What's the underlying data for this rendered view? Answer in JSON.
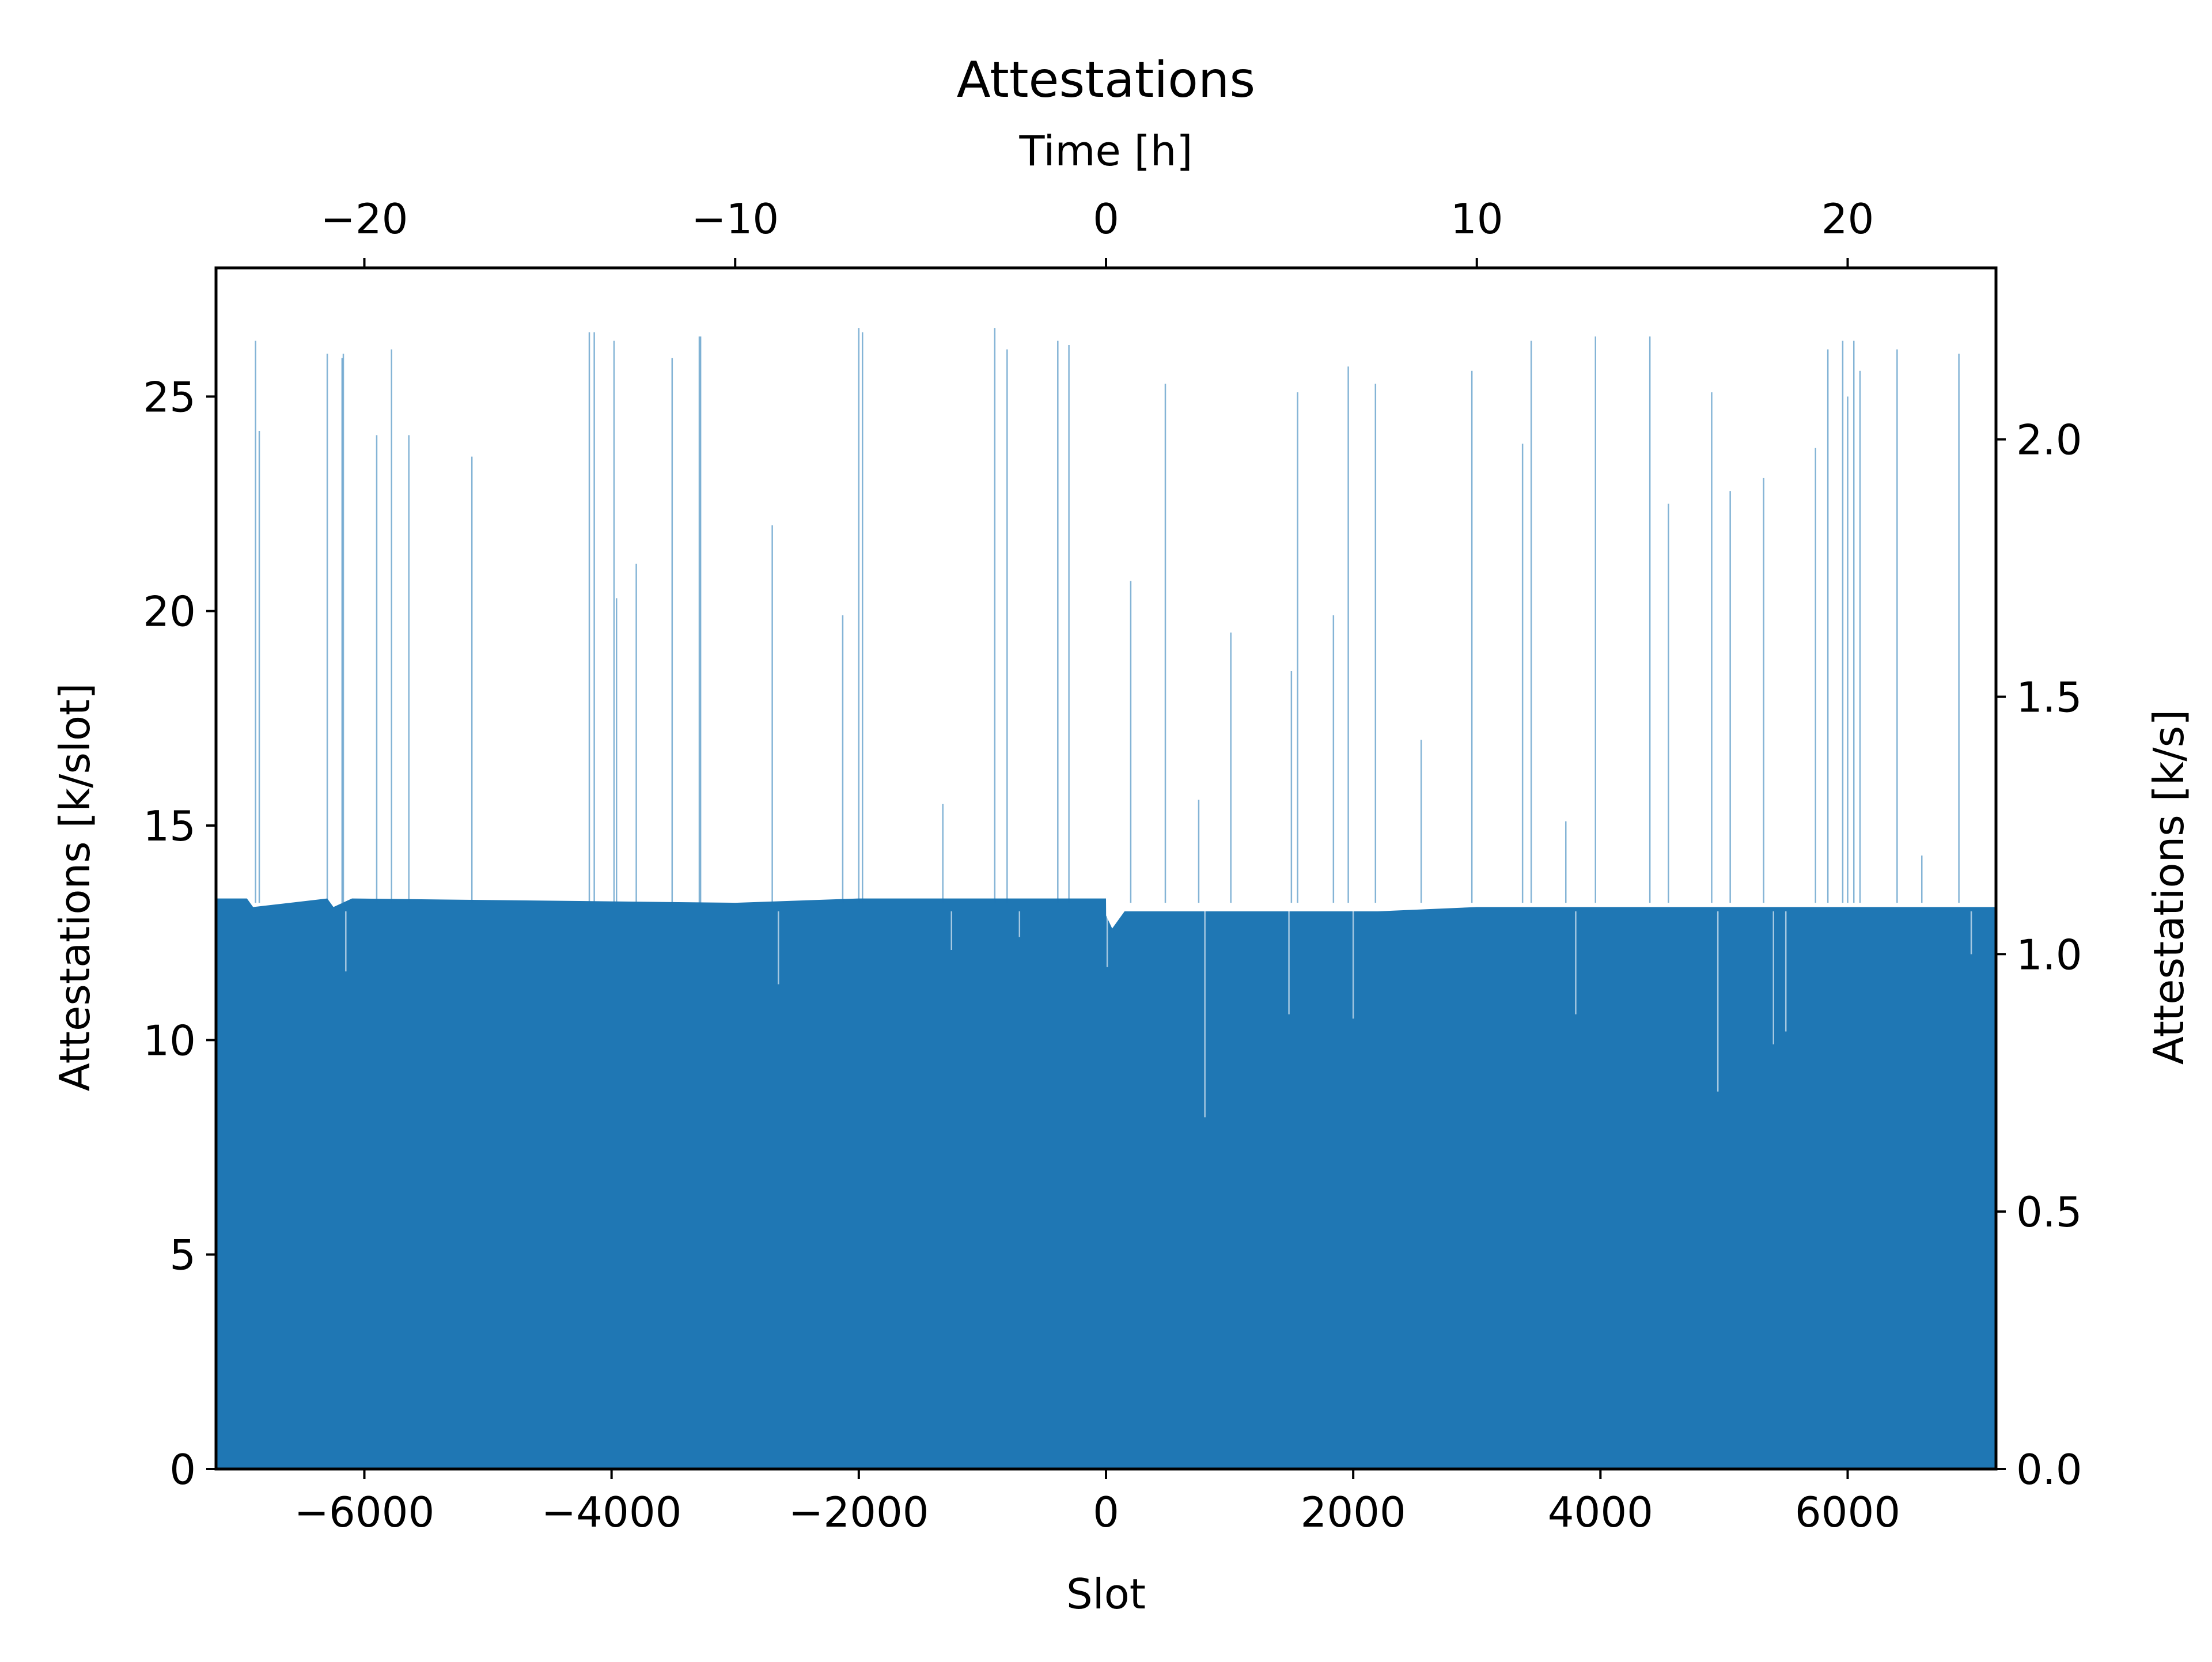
{
  "chart_data": {
    "type": "bar",
    "title": "Attestations",
    "xlabel": "Slot",
    "ylabel": "Attestations [k/slot]",
    "secondary_xlabel": "Time [h]",
    "secondary_ylabel": "Attestations [k/s]",
    "xlim": [
      -7200,
      7200
    ],
    "ylim": [
      0,
      28
    ],
    "secondary_xlim": [
      -24,
      24
    ],
    "secondary_ylim": [
      0,
      2.333
    ],
    "xticks": [
      -6000,
      -4000,
      -2000,
      0,
      2000,
      4000,
      6000
    ],
    "xtick_labels": [
      "−6000",
      "−4000",
      "−2000",
      "0",
      "2000",
      "4000",
      "6000"
    ],
    "yticks": [
      0,
      5,
      10,
      15,
      20,
      25
    ],
    "ytick_labels": [
      "0",
      "5",
      "10",
      "15",
      "20",
      "25"
    ],
    "top_xticks": [
      -20,
      -10,
      0,
      10,
      20
    ],
    "top_xtick_labels": [
      "−20",
      "−10",
      "0",
      "10",
      "20"
    ],
    "right_yticks": [
      0.0,
      0.5,
      1.0,
      1.5,
      2.0
    ],
    "right_ytick_labels": [
      "0.0",
      "0.5",
      "1.0",
      "1.5",
      "2.0"
    ],
    "grid": false,
    "bar_color": "#1f77b4",
    "series": [
      {
        "name": "",
        "baseline": [
          [
            -7200,
            13.3
          ],
          [
            -6950,
            13.3
          ],
          [
            -6900,
            13.1
          ],
          [
            -6300,
            13.3
          ],
          [
            -6250,
            13.1
          ],
          [
            -6100,
            13.3
          ],
          [
            -3000,
            13.2
          ],
          [
            -2000,
            13.3
          ],
          [
            0,
            13.3
          ],
          [
            1,
            12.9
          ],
          [
            50,
            12.6
          ],
          [
            150,
            13.0
          ],
          [
            1000,
            13.0
          ],
          [
            1600,
            13.0
          ],
          [
            2200,
            13.0
          ],
          [
            3000,
            13.1
          ],
          [
            5000,
            13.1
          ],
          [
            7200,
            13.1
          ]
        ],
        "spikes": [
          [
            -6880,
            26.3
          ],
          [
            -6850,
            24.2
          ],
          [
            -6300,
            26.0
          ],
          [
            -6180,
            25.9
          ],
          [
            -6170,
            26.0
          ],
          [
            -5900,
            24.1
          ],
          [
            -5780,
            26.1
          ],
          [
            -5640,
            24.1
          ],
          [
            -5130,
            23.6
          ],
          [
            -4180,
            26.5
          ],
          [
            -4140,
            26.5
          ],
          [
            -3980,
            26.3
          ],
          [
            -3960,
            20.3
          ],
          [
            -3800,
            21.1
          ],
          [
            -3510,
            25.9
          ],
          [
            -3290,
            26.4
          ],
          [
            -3280,
            26.4
          ],
          [
            -2700,
            22.0
          ],
          [
            -2130,
            19.9
          ],
          [
            -2000,
            26.6
          ],
          [
            -1970,
            26.5
          ],
          [
            -1320,
            15.5
          ],
          [
            -900,
            26.6
          ],
          [
            -800,
            26.1
          ],
          [
            -390,
            26.3
          ],
          [
            -300,
            26.2
          ],
          [
            200,
            20.7
          ],
          [
            480,
            25.3
          ],
          [
            750,
            15.6
          ],
          [
            1010,
            19.5
          ],
          [
            1500,
            18.6
          ],
          [
            1550,
            25.1
          ],
          [
            1840,
            19.9
          ],
          [
            1960,
            25.7
          ],
          [
            2180,
            25.3
          ],
          [
            2550,
            17.0
          ],
          [
            2960,
            25.6
          ],
          [
            3370,
            23.9
          ],
          [
            3440,
            26.3
          ],
          [
            3720,
            15.1
          ],
          [
            3960,
            26.4
          ],
          [
            4400,
            26.4
          ],
          [
            4550,
            22.5
          ],
          [
            4900,
            25.1
          ],
          [
            5050,
            22.8
          ],
          [
            5320,
            23.1
          ],
          [
            5740,
            23.8
          ],
          [
            5840,
            26.1
          ],
          [
            5960,
            26.3
          ],
          [
            6000,
            25.0
          ],
          [
            6050,
            26.3
          ],
          [
            6100,
            25.6
          ],
          [
            6400,
            26.1
          ],
          [
            6600,
            14.3
          ],
          [
            6900,
            26.0
          ]
        ],
        "dips": [
          [
            -6150,
            11.6
          ],
          [
            -2650,
            11.3
          ],
          [
            -1250,
            12.1
          ],
          [
            -700,
            12.4
          ],
          [
            10,
            11.7
          ],
          [
            800,
            8.2
          ],
          [
            1480,
            10.6
          ],
          [
            2000,
            10.5
          ],
          [
            3800,
            10.6
          ],
          [
            4950,
            8.8
          ],
          [
            5400,
            9.9
          ],
          [
            5500,
            10.2
          ],
          [
            7000,
            12.0
          ]
        ]
      }
    ]
  }
}
